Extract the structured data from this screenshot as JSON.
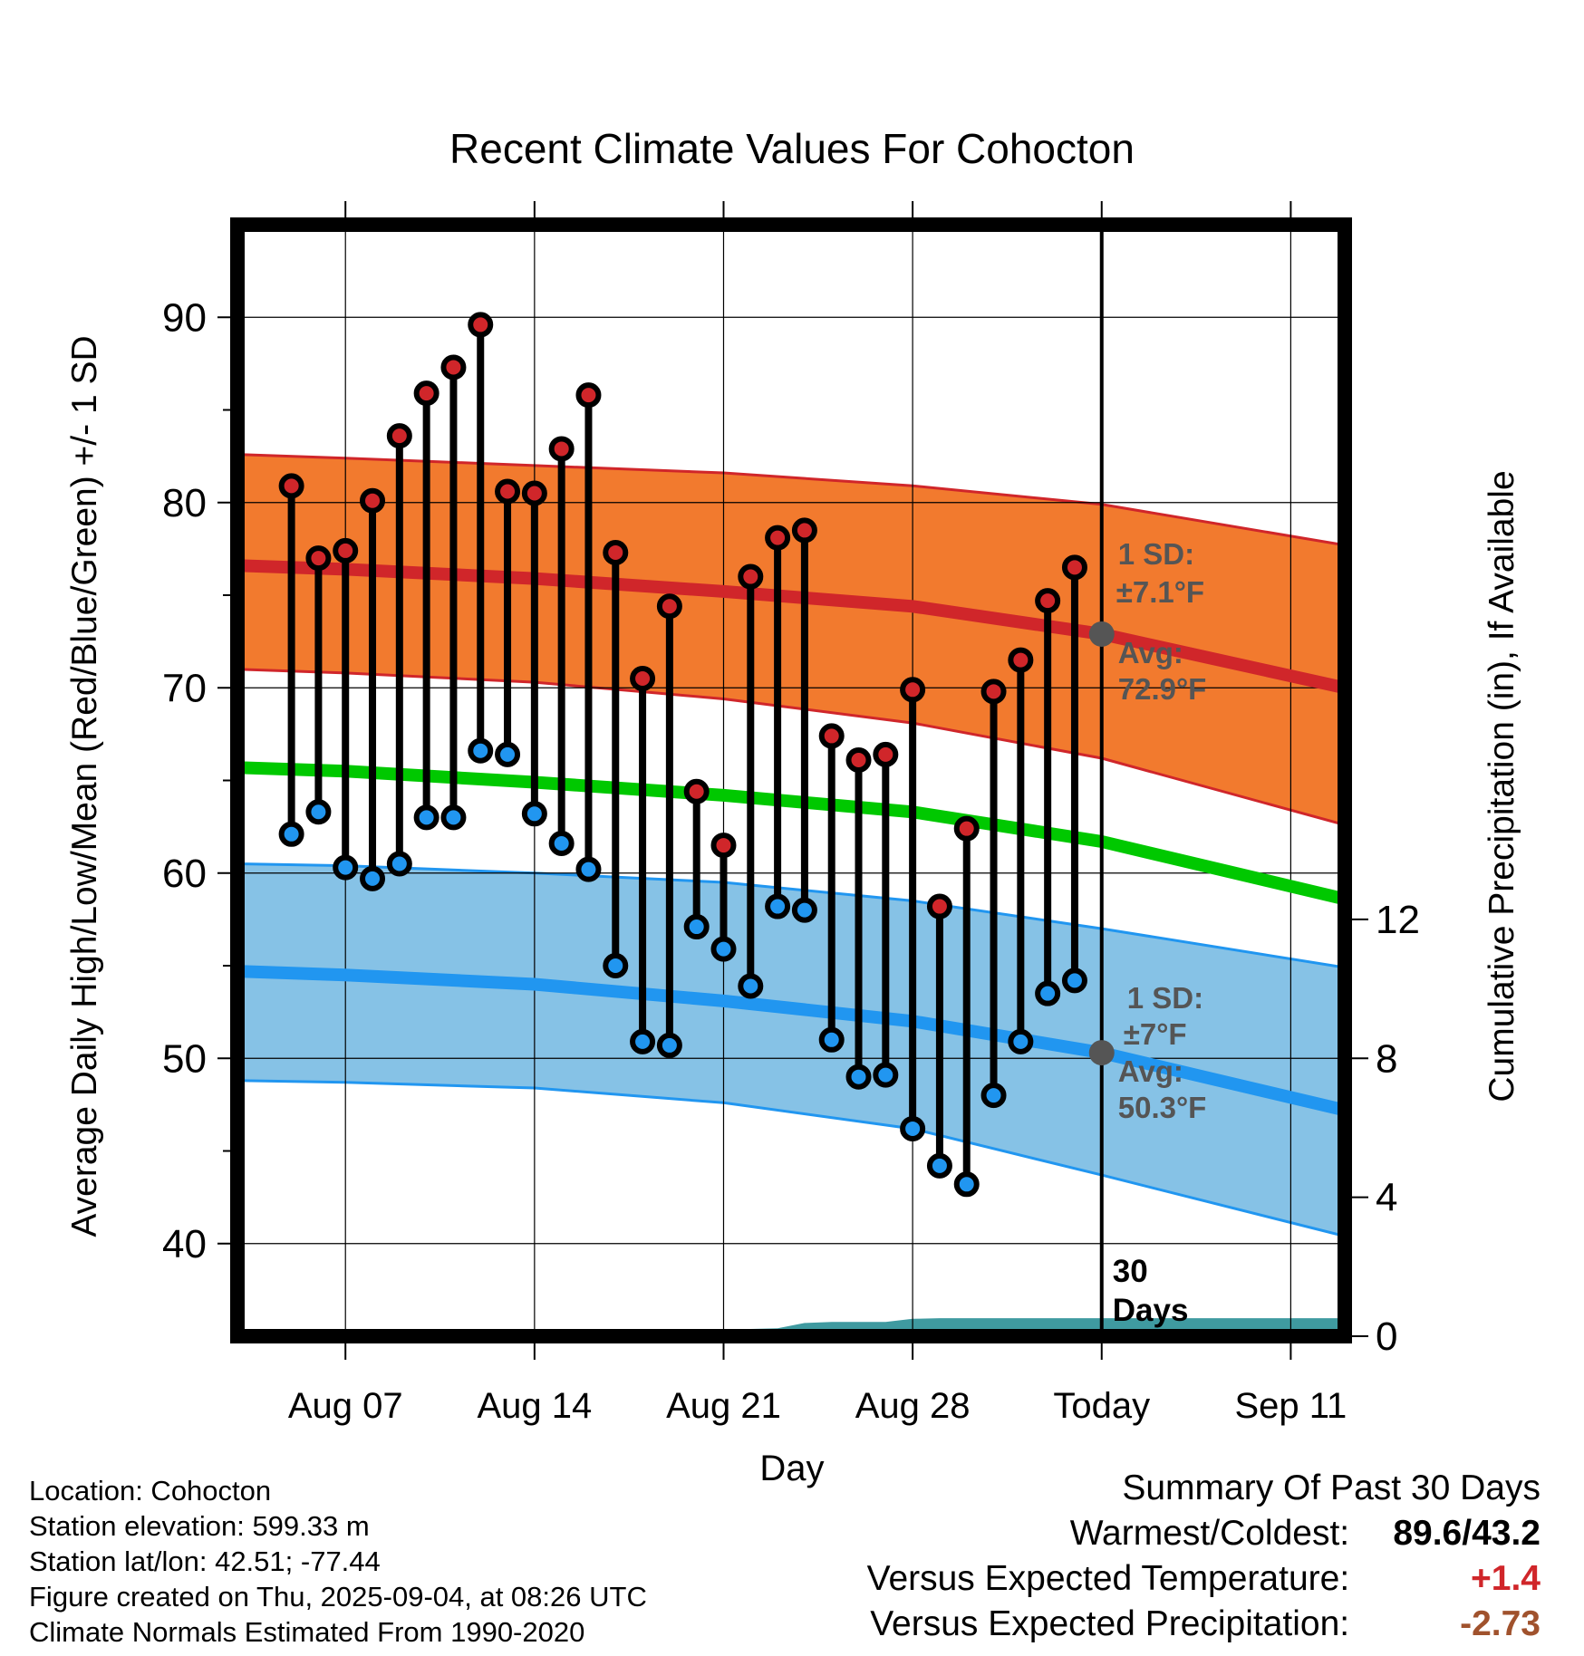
{
  "chart_data": {
    "type": "line",
    "title": "Recent Climate Values For Cohocton",
    "xlabel": "Day",
    "ylabel": "Average Daily High/Low/Mean (Red/Blue/Green) +/- 1 SD",
    "y2label": "Cumulative Precipitation (in), If Available",
    "ylim": [
      35,
      95
    ],
    "y2lim": [
      0,
      32
    ],
    "yticks": [
      40,
      50,
      60,
      70,
      80,
      90
    ],
    "y2ticks": [
      0,
      4,
      8,
      12
    ],
    "xlim": [
      "2025-08-03",
      "2025-09-13"
    ],
    "xtick_labels": [
      {
        "date": "2025-08-07",
        "label": "Aug 07"
      },
      {
        "date": "2025-08-14",
        "label": "Aug 14"
      },
      {
        "date": "2025-08-21",
        "label": "Aug 21"
      },
      {
        "date": "2025-08-28",
        "label": "Aug 28"
      },
      {
        "date": "2025-09-04",
        "label": "Today"
      },
      {
        "date": "2025-09-11",
        "label": "Sep 11"
      }
    ],
    "today": "2025-09-04",
    "grid": true,
    "observations": {
      "dates": [
        "2025-08-05",
        "2025-08-06",
        "2025-08-07",
        "2025-08-08",
        "2025-08-09",
        "2025-08-10",
        "2025-08-11",
        "2025-08-12",
        "2025-08-13",
        "2025-08-14",
        "2025-08-15",
        "2025-08-16",
        "2025-08-17",
        "2025-08-18",
        "2025-08-19",
        "2025-08-20",
        "2025-08-21",
        "2025-08-22",
        "2025-08-23",
        "2025-08-24",
        "2025-08-25",
        "2025-08-26",
        "2025-08-27",
        "2025-08-28",
        "2025-08-29",
        "2025-08-30",
        "2025-08-31",
        "2025-09-01",
        "2025-09-02",
        "2025-09-03"
      ],
      "high": [
        80.9,
        77.0,
        77.4,
        80.1,
        83.6,
        85.9,
        87.3,
        89.6,
        80.6,
        80.5,
        82.9,
        85.8,
        77.3,
        70.5,
        74.4,
        64.4,
        61.5,
        76.0,
        78.1,
        78.5,
        67.4,
        66.1,
        66.4,
        69.9,
        58.2,
        62.4,
        69.8,
        71.5,
        74.7,
        76.5
      ],
      "low": [
        62.1,
        63.3,
        60.3,
        59.7,
        60.5,
        63.0,
        63.0,
        66.6,
        66.4,
        63.2,
        61.6,
        60.2,
        55.0,
        50.9,
        50.7,
        57.1,
        55.9,
        53.9,
        58.2,
        58.0,
        51.0,
        49.0,
        49.1,
        46.2,
        44.2,
        43.2,
        48.0,
        50.9,
        53.5,
        54.2
      ]
    },
    "normals": {
      "dates": [
        "2025-08-03",
        "2025-08-07",
        "2025-08-14",
        "2025-08-21",
        "2025-08-28",
        "2025-09-04",
        "2025-09-13"
      ],
      "high_avg": [
        76.6,
        76.4,
        75.9,
        75.2,
        74.4,
        72.9,
        70.0
      ],
      "high_upper": [
        82.6,
        82.4,
        82.0,
        81.6,
        80.9,
        79.9,
        77.7
      ],
      "high_lower": [
        71.0,
        70.8,
        70.3,
        69.4,
        68.1,
        66.2,
        62.6
      ],
      "mean": [
        65.7,
        65.5,
        64.9,
        64.2,
        63.3,
        61.7,
        58.6
      ],
      "low_avg": [
        54.7,
        54.5,
        54.0,
        53.1,
        52.0,
        50.3,
        47.2
      ],
      "low_upper": [
        60.5,
        60.4,
        60.0,
        59.5,
        58.5,
        57.0,
        54.9
      ],
      "low_lower": [
        48.8,
        48.7,
        48.4,
        47.6,
        46.2,
        43.7,
        40.4
      ]
    },
    "precipitation": {
      "dates": [
        "2025-08-03",
        "2025-08-19",
        "2025-08-20",
        "2025-08-21",
        "2025-08-23",
        "2025-08-24",
        "2025-08-25",
        "2025-08-27",
        "2025-08-28",
        "2025-08-29",
        "2025-09-13"
      ],
      "cumulative": [
        0,
        0,
        0.15,
        0.19,
        0.23,
        0.38,
        0.41,
        0.41,
        0.5,
        0.52,
        0.52
      ]
    },
    "annotations": {
      "high_sd": {
        "title": "1 SD:",
        "value": "±7.1°F"
      },
      "high_avg": {
        "title": "Avg:",
        "value": "72.9°F"
      },
      "low_sd": {
        "title": "1 SD:",
        "value": "±7°F"
      },
      "low_avg": {
        "title": "Avg:",
        "value": "50.3°F"
      },
      "days": {
        "line1": "30",
        "line2": "Days"
      }
    },
    "colors": {
      "high_band": "#f27a2e",
      "high_line": "#d0262a",
      "low_band": "#86c2e6",
      "low_line": "#2196f0",
      "mean_line": "#00c800",
      "precip": "#3f9aa0",
      "high_marker": "#d0262a",
      "low_marker": "#2196f0",
      "annotation_text": "#555555"
    }
  },
  "info": {
    "location": "Location: Cohocton",
    "elevation": "Station elevation: 599.33 m",
    "latlon": "Station lat/lon: 42.51; -77.44",
    "created": "Figure created on Thu, 2025-09-04, at 08:26 UTC",
    "normals": "Climate Normals Estimated From 1990-2020"
  },
  "summary": {
    "title": "Summary Of Past 30 Days",
    "warmest_label": "Warmest/Coldest:",
    "warmest_value": "89.6/43.2",
    "temp_label": "Versus Expected Temperature:",
    "temp_value": "+1.4",
    "temp_color": "#d0262a",
    "precip_label": "Versus Expected Precipitation:",
    "precip_value": "-2.73",
    "precip_color": "#a0522d"
  }
}
